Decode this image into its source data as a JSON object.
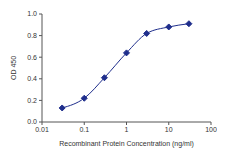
{
  "chart_data": {
    "type": "line",
    "x_label": "Recombinant Protein Concentration (ng/ml)",
    "y_label": "OD 450",
    "x": [
      0.03,
      0.1,
      0.3,
      1,
      3,
      10,
      30
    ],
    "values": [
      0.13,
      0.22,
      0.41,
      0.64,
      0.82,
      0.88,
      0.91
    ],
    "color": "#1f2e8c",
    "marker": "diamond",
    "log": "x",
    "xlim": [
      0.01,
      100
    ],
    "xticks": [
      0.01,
      0.1,
      1,
      10,
      100
    ],
    "ylim": [
      0,
      1
    ],
    "yticks": [
      {
        "value": 0,
        "label": "0.0"
      },
      0.2,
      0.4,
      0.6,
      0.8,
      {
        "value": 1,
        "label": "1.0"
      }
    ],
    "grid": false
  }
}
